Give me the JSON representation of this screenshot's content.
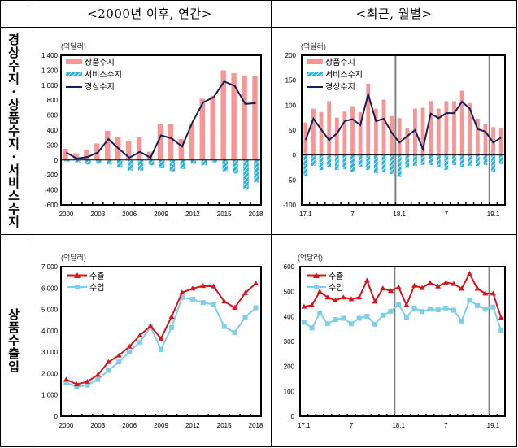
{
  "column_headers": [
    "<2000년 이후, 연간>",
    "<최근, 월별>"
  ],
  "row_labels": [
    [
      "경",
      "상",
      "수",
      "지",
      "·",
      "상",
      "품",
      "수",
      "지",
      "·",
      "서",
      "비",
      "스",
      "수",
      "지"
    ],
    [
      "상",
      "품",
      "수",
      "출",
      "입"
    ]
  ],
  "colors": {
    "goods_balance": "#F79694",
    "services_balance": "#2FB4D8",
    "current_account": "#142057",
    "exports": "#D9141C",
    "imports": "#7FCEEA",
    "divider": "#808080"
  },
  "chart_data": [
    {
      "id": "annual-balance",
      "type": "bar",
      "unit_label": "(억달러)",
      "categories": [
        "2000",
        "2001",
        "2002",
        "2003",
        "2004",
        "2005",
        "2006",
        "2007",
        "2008",
        "2009",
        "2010",
        "2011",
        "2012",
        "2013",
        "2014",
        "2015",
        "2016",
        "2017",
        "2018"
      ],
      "tick_labels": [
        "2000",
        "2003",
        "2006",
        "2009",
        "2012",
        "2015",
        "2018"
      ],
      "ylim": [
        -600,
        1400
      ],
      "yticks": [
        -600,
        -400,
        -200,
        0,
        200,
        400,
        600,
        800,
        1000,
        1200,
        1400
      ],
      "ytick_labels": [
        "-600",
        "-400",
        "-200",
        "0",
        "200",
        "400",
        "600",
        "800",
        "1,000",
        "1,200",
        "1,400"
      ],
      "legend": [
        "상품수지",
        "서비스수지",
        "경상수지"
      ],
      "legend_position": "top-left",
      "series": [
        {
          "name": "상품수지",
          "kind": "bar",
          "values": [
            150,
            90,
            140,
            220,
            390,
            310,
            250,
            310,
            110,
            480,
            480,
            280,
            490,
            820,
            860,
            1200,
            1160,
            1130,
            1120
          ]
        },
        {
          "name": "서비스수지",
          "kind": "hatched-bar",
          "values": [
            -20,
            -30,
            -60,
            -50,
            -60,
            -100,
            -140,
            -140,
            -70,
            -110,
            -150,
            -120,
            -50,
            -70,
            -30,
            -150,
            -180,
            -380,
            -300
          ]
        },
        {
          "name": "경상수지",
          "kind": "line",
          "values": [
            100,
            20,
            40,
            100,
            280,
            150,
            30,
            110,
            30,
            330,
            290,
            180,
            510,
            770,
            840,
            1050,
            990,
            750,
            760
          ]
        }
      ]
    },
    {
      "id": "monthly-balance",
      "type": "bar",
      "unit_label": "(억달러)",
      "categories": [
        "17.1",
        "17.2",
        "17.3",
        "17.4",
        "17.5",
        "17.6",
        "17.7",
        "17.8",
        "17.9",
        "17.10",
        "17.11",
        "17.12",
        "18.1",
        "18.2",
        "18.3",
        "18.4",
        "18.5",
        "18.6",
        "18.7",
        "18.8",
        "18.9",
        "18.10",
        "18.11",
        "18.12",
        "19.1",
        "19.2"
      ],
      "tick_labels": [
        "17.1",
        "7",
        "18.1",
        "7",
        "19.1"
      ],
      "tick_label_categories": [
        "17.1",
        "17.7",
        "18.1",
        "18.7",
        "19.1"
      ],
      "year_dividers": [
        "18.1",
        "19.1"
      ],
      "ylim": [
        -100,
        200
      ],
      "yticks": [
        -100,
        -50,
        0,
        50,
        100,
        150,
        200
      ],
      "ytick_labels": [
        "-100",
        "-50",
        "0",
        "50",
        "100",
        "150",
        "200"
      ],
      "legend": [
        "상품수지",
        "서비스수지",
        "경상수지"
      ],
      "legend_position": "top-left",
      "series": [
        {
          "name": "상품수지",
          "kind": "bar",
          "values": [
            65,
            93,
            86,
            108,
            75,
            87,
            98,
            86,
            143,
            93,
            111,
            78,
            74,
            54,
            93,
            95,
            108,
            93,
            108,
            108,
            129,
            104,
            73,
            63,
            56,
            54
          ]
        },
        {
          "name": "서비스수지",
          "kind": "hatched-bar",
          "values": [
            -43,
            -22,
            -30,
            -25,
            -30,
            -28,
            -34,
            -24,
            -30,
            -37,
            -35,
            -38,
            -44,
            -26,
            -22,
            -20,
            -20,
            -24,
            -30,
            -20,
            -25,
            -22,
            -22,
            -20,
            -35,
            -18
          ]
        },
        {
          "name": "경상수지",
          "kind": "line",
          "values": [
            30,
            73,
            51,
            30,
            43,
            68,
            72,
            60,
            122,
            68,
            73,
            45,
            25,
            38,
            50,
            12,
            83,
            74,
            84,
            84,
            107,
            93,
            52,
            47,
            25,
            35
          ]
        }
      ]
    },
    {
      "id": "annual-trade",
      "type": "line",
      "unit_label": "(억달러)",
      "categories": [
        "2000",
        "2001",
        "2002",
        "2003",
        "2004",
        "2005",
        "2006",
        "2007",
        "2008",
        "2009",
        "2010",
        "2011",
        "2012",
        "2013",
        "2014",
        "2015",
        "2016",
        "2017",
        "2018"
      ],
      "tick_labels": [
        "2000",
        "2003",
        "2006",
        "2009",
        "2012",
        "2015",
        "2018"
      ],
      "ylim": [
        0,
        7000
      ],
      "yticks": [
        0,
        1000,
        2000,
        3000,
        4000,
        5000,
        6000,
        7000
      ],
      "ytick_labels": [
        "0",
        "1,000",
        "2,000",
        "3,000",
        "4,000",
        "5,000",
        "6,000",
        "7,000"
      ],
      "legend": [
        "수출",
        "수입"
      ],
      "legend_position": "top-left",
      "series": [
        {
          "name": "수출",
          "marker": "triangle",
          "values": [
            1720,
            1500,
            1620,
            1940,
            2540,
            2850,
            3260,
            3790,
            4220,
            3640,
            4660,
            5790,
            5980,
            6100,
            6080,
            5380,
            5080,
            5770,
            6220
          ]
        },
        {
          "name": "수입",
          "marker": "square",
          "values": [
            1570,
            1380,
            1460,
            1720,
            2150,
            2540,
            3020,
            3470,
            4180,
            3120,
            4150,
            5560,
            5480,
            5320,
            5230,
            4200,
            3920,
            4640,
            5080
          ]
        }
      ]
    },
    {
      "id": "monthly-trade",
      "type": "line",
      "unit_label": "(억달러)",
      "categories": [
        "17.1",
        "17.2",
        "17.3",
        "17.4",
        "17.5",
        "17.6",
        "17.7",
        "17.8",
        "17.9",
        "17.10",
        "17.11",
        "17.12",
        "18.1",
        "18.2",
        "18.3",
        "18.4",
        "18.5",
        "18.6",
        "18.7",
        "18.8",
        "18.9",
        "18.10",
        "18.11",
        "18.12",
        "19.1",
        "19.2"
      ],
      "tick_labels": [
        "17.1",
        "7",
        "18.1",
        "7",
        "19.1"
      ],
      "tick_label_categories": [
        "17.1",
        "17.7",
        "18.1",
        "18.7",
        "19.1"
      ],
      "year_dividers": [
        "18.1",
        "19.1"
      ],
      "ylim": [
        0,
        600
      ],
      "yticks": [
        0,
        100,
        200,
        300,
        400,
        500,
        600
      ],
      "ytick_labels": [
        "0",
        "100",
        "200",
        "300",
        "400",
        "500",
        "600"
      ],
      "legend": [
        "수출",
        "수입"
      ],
      "legend_position": "top-left",
      "series": [
        {
          "name": "수출",
          "marker": "triangle",
          "values": [
            440,
            445,
            500,
            477,
            465,
            477,
            470,
            477,
            545,
            460,
            513,
            503,
            518,
            446,
            524,
            515,
            535,
            521,
            537,
            531,
            512,
            572,
            512,
            493,
            493,
            395
          ]
        },
        {
          "name": "수입",
          "marker": "square",
          "values": [
            377,
            354,
            415,
            371,
            388,
            393,
            371,
            393,
            401,
            369,
            405,
            421,
            448,
            396,
            434,
            420,
            430,
            427,
            434,
            425,
            382,
            466,
            444,
            430,
            438,
            344
          ]
        }
      ]
    }
  ]
}
